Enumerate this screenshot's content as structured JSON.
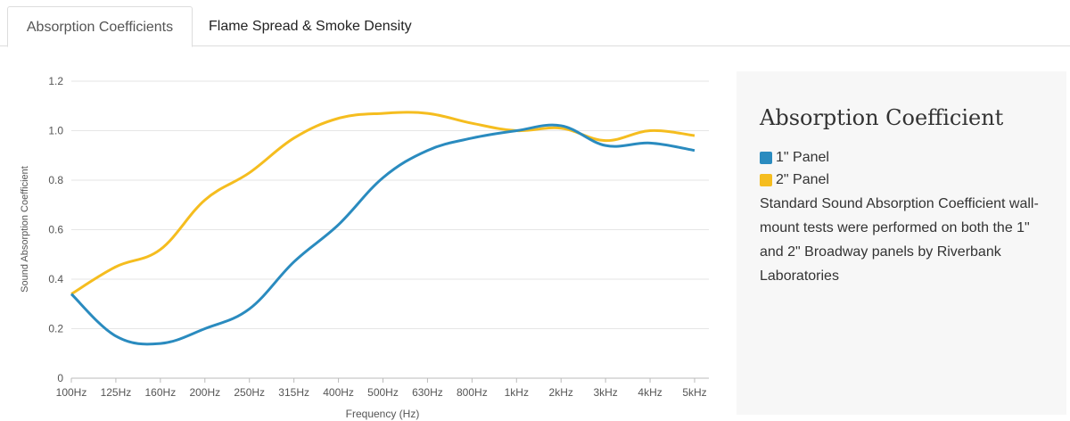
{
  "tabs": [
    {
      "label": "Absorption Coefficients",
      "active": true
    },
    {
      "label": "Flame Spread & Smoke Density",
      "active": false
    }
  ],
  "info": {
    "title": "Absorption Coefficient",
    "legend": [
      {
        "label": "1\" Panel",
        "color": "#2a8bbf"
      },
      {
        "label": "2\" Panel",
        "color": "#f5bd1f"
      }
    ],
    "description": "Standard Sound Absorption Coefficient wall-mount tests were performed on both the 1\" and 2\" Broadway panels by Riverbank Laboratories"
  },
  "chart_data": {
    "type": "line",
    "xlabel": "Frequency (Hz)",
    "ylabel": "Sound Absorption Coefficient",
    "categories": [
      "100Hz",
      "125Hz",
      "160Hz",
      "200Hz",
      "250Hz",
      "315Hz",
      "400Hz",
      "500Hz",
      "630Hz",
      "800Hz",
      "1kHz",
      "2kHz",
      "3kHz",
      "4kHz",
      "5kHz"
    ],
    "ylim": [
      0,
      1.2
    ],
    "yticks": [
      "0",
      "0.2",
      "0.4",
      "0.6",
      "0.8",
      "1.0",
      "1.2"
    ],
    "grid": true,
    "series": [
      {
        "name": "1\" Panel",
        "color": "#2a8bbf",
        "values": [
          0.34,
          0.17,
          0.14,
          0.2,
          0.28,
          0.47,
          0.62,
          0.81,
          0.92,
          0.97,
          1.0,
          1.02,
          0.94,
          0.95,
          0.92
        ]
      },
      {
        "name": "2\" Panel",
        "color": "#f5bd1f",
        "values": [
          0.34,
          0.45,
          0.52,
          0.72,
          0.83,
          0.97,
          1.05,
          1.07,
          1.07,
          1.03,
          1.0,
          1.01,
          0.96,
          1.0,
          0.98
        ]
      }
    ]
  }
}
